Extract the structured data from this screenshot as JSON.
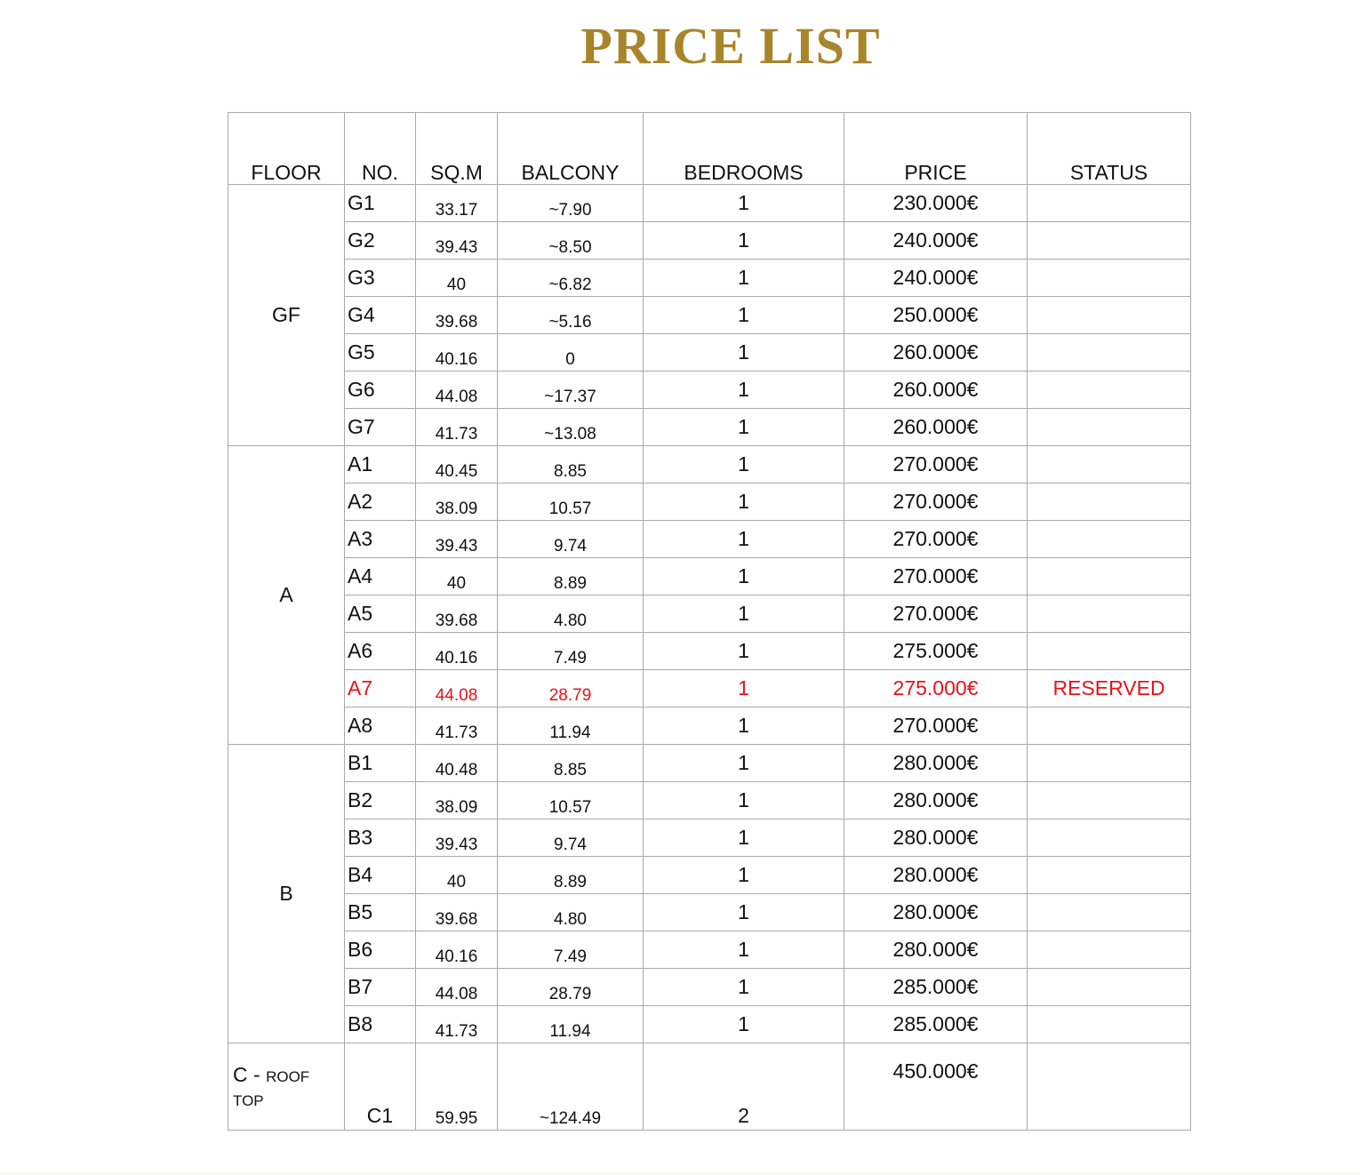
{
  "title": "PRICE LIST",
  "headers": [
    "FLOOR",
    "NO.",
    "SQ.M",
    "BALCONY",
    "BEDROOMS",
    "PRICE",
    "STATUS"
  ],
  "highlight_color": "#e8121b",
  "title_color": "#a8842a",
  "groups": [
    {
      "floor": "GF",
      "rows": [
        {
          "no": "G1",
          "sqm": "33.17",
          "balcony": "~7.90",
          "bedrooms": "1",
          "price": "230.000€",
          "status": ""
        },
        {
          "no": "G2",
          "sqm": "39.43",
          "balcony": "~8.50",
          "bedrooms": "1",
          "price": "240.000€",
          "status": ""
        },
        {
          "no": "G3",
          "sqm": "40",
          "balcony": "~6.82",
          "bedrooms": "1",
          "price": "240.000€",
          "status": ""
        },
        {
          "no": "G4",
          "sqm": "39.68",
          "balcony": "~5.16",
          "bedrooms": "1",
          "price": "250.000€",
          "status": ""
        },
        {
          "no": "G5",
          "sqm": "40.16",
          "balcony": "0",
          "bedrooms": "1",
          "price": "260.000€",
          "status": ""
        },
        {
          "no": "G6",
          "sqm": "44.08",
          "balcony": "~17.37",
          "bedrooms": "1",
          "price": "260.000€",
          "status": ""
        },
        {
          "no": "G7",
          "sqm": "41.73",
          "balcony": "~13.08",
          "bedrooms": "1",
          "price": "260.000€",
          "status": ""
        }
      ]
    },
    {
      "floor": "A",
      "rows": [
        {
          "no": "A1",
          "sqm": "40.45",
          "balcony": "8.85",
          "bedrooms": "1",
          "price": "270.000€",
          "status": ""
        },
        {
          "no": "A2",
          "sqm": "38.09",
          "balcony": "10.57",
          "bedrooms": "1",
          "price": "270.000€",
          "status": ""
        },
        {
          "no": "A3",
          "sqm": "39.43",
          "balcony": "9.74",
          "bedrooms": "1",
          "price": "270.000€",
          "status": ""
        },
        {
          "no": "A4",
          "sqm": "40",
          "balcony": "8.89",
          "bedrooms": "1",
          "price": "270.000€",
          "status": ""
        },
        {
          "no": "A5",
          "sqm": "39.68",
          "balcony": "4.80",
          "bedrooms": "1",
          "price": "270.000€",
          "status": ""
        },
        {
          "no": "A6",
          "sqm": "40.16",
          "balcony": "7.49",
          "bedrooms": "1",
          "price": "275.000€",
          "status": ""
        },
        {
          "no": "A7",
          "sqm": "44.08",
          "balcony": "28.79",
          "bedrooms": "1",
          "price": "275.000€",
          "status": "RESERVED"
        },
        {
          "no": "A8",
          "sqm": "41.73",
          "balcony": "11.94",
          "bedrooms": "1",
          "price": "270.000€",
          "status": ""
        }
      ]
    },
    {
      "floor": "B",
      "rows": [
        {
          "no": "B1",
          "sqm": "40.48",
          "balcony": "8.85",
          "bedrooms": "1",
          "price": "280.000€",
          "status": ""
        },
        {
          "no": "B2",
          "sqm": "38.09",
          "balcony": "10.57",
          "bedrooms": "1",
          "price": "280.000€",
          "status": ""
        },
        {
          "no": "B3",
          "sqm": "39.43",
          "balcony": "9.74",
          "bedrooms": "1",
          "price": "280.000€",
          "status": ""
        },
        {
          "no": "B4",
          "sqm": "40",
          "balcony": "8.89",
          "bedrooms": "1",
          "price": "280.000€",
          "status": ""
        },
        {
          "no": "B5",
          "sqm": "39.68",
          "balcony": "4.80",
          "bedrooms": "1",
          "price": "280.000€",
          "status": ""
        },
        {
          "no": "B6",
          "sqm": "40.16",
          "balcony": "7.49",
          "bedrooms": "1",
          "price": "280.000€",
          "status": ""
        },
        {
          "no": "B7",
          "sqm": "44.08",
          "balcony": "28.79",
          "bedrooms": "1",
          "price": "285.000€",
          "status": ""
        },
        {
          "no": "B8",
          "sqm": "41.73",
          "balcony": "11.94",
          "bedrooms": "1",
          "price": "285.000€",
          "status": ""
        }
      ]
    }
  ],
  "rooftop": {
    "floor_main": "C - ",
    "floor_sub": "ROOF TOP",
    "no": "C1",
    "sqm": "59.95",
    "balcony": "~124.49",
    "bedrooms": "2",
    "price": "450.000€",
    "status": ""
  }
}
